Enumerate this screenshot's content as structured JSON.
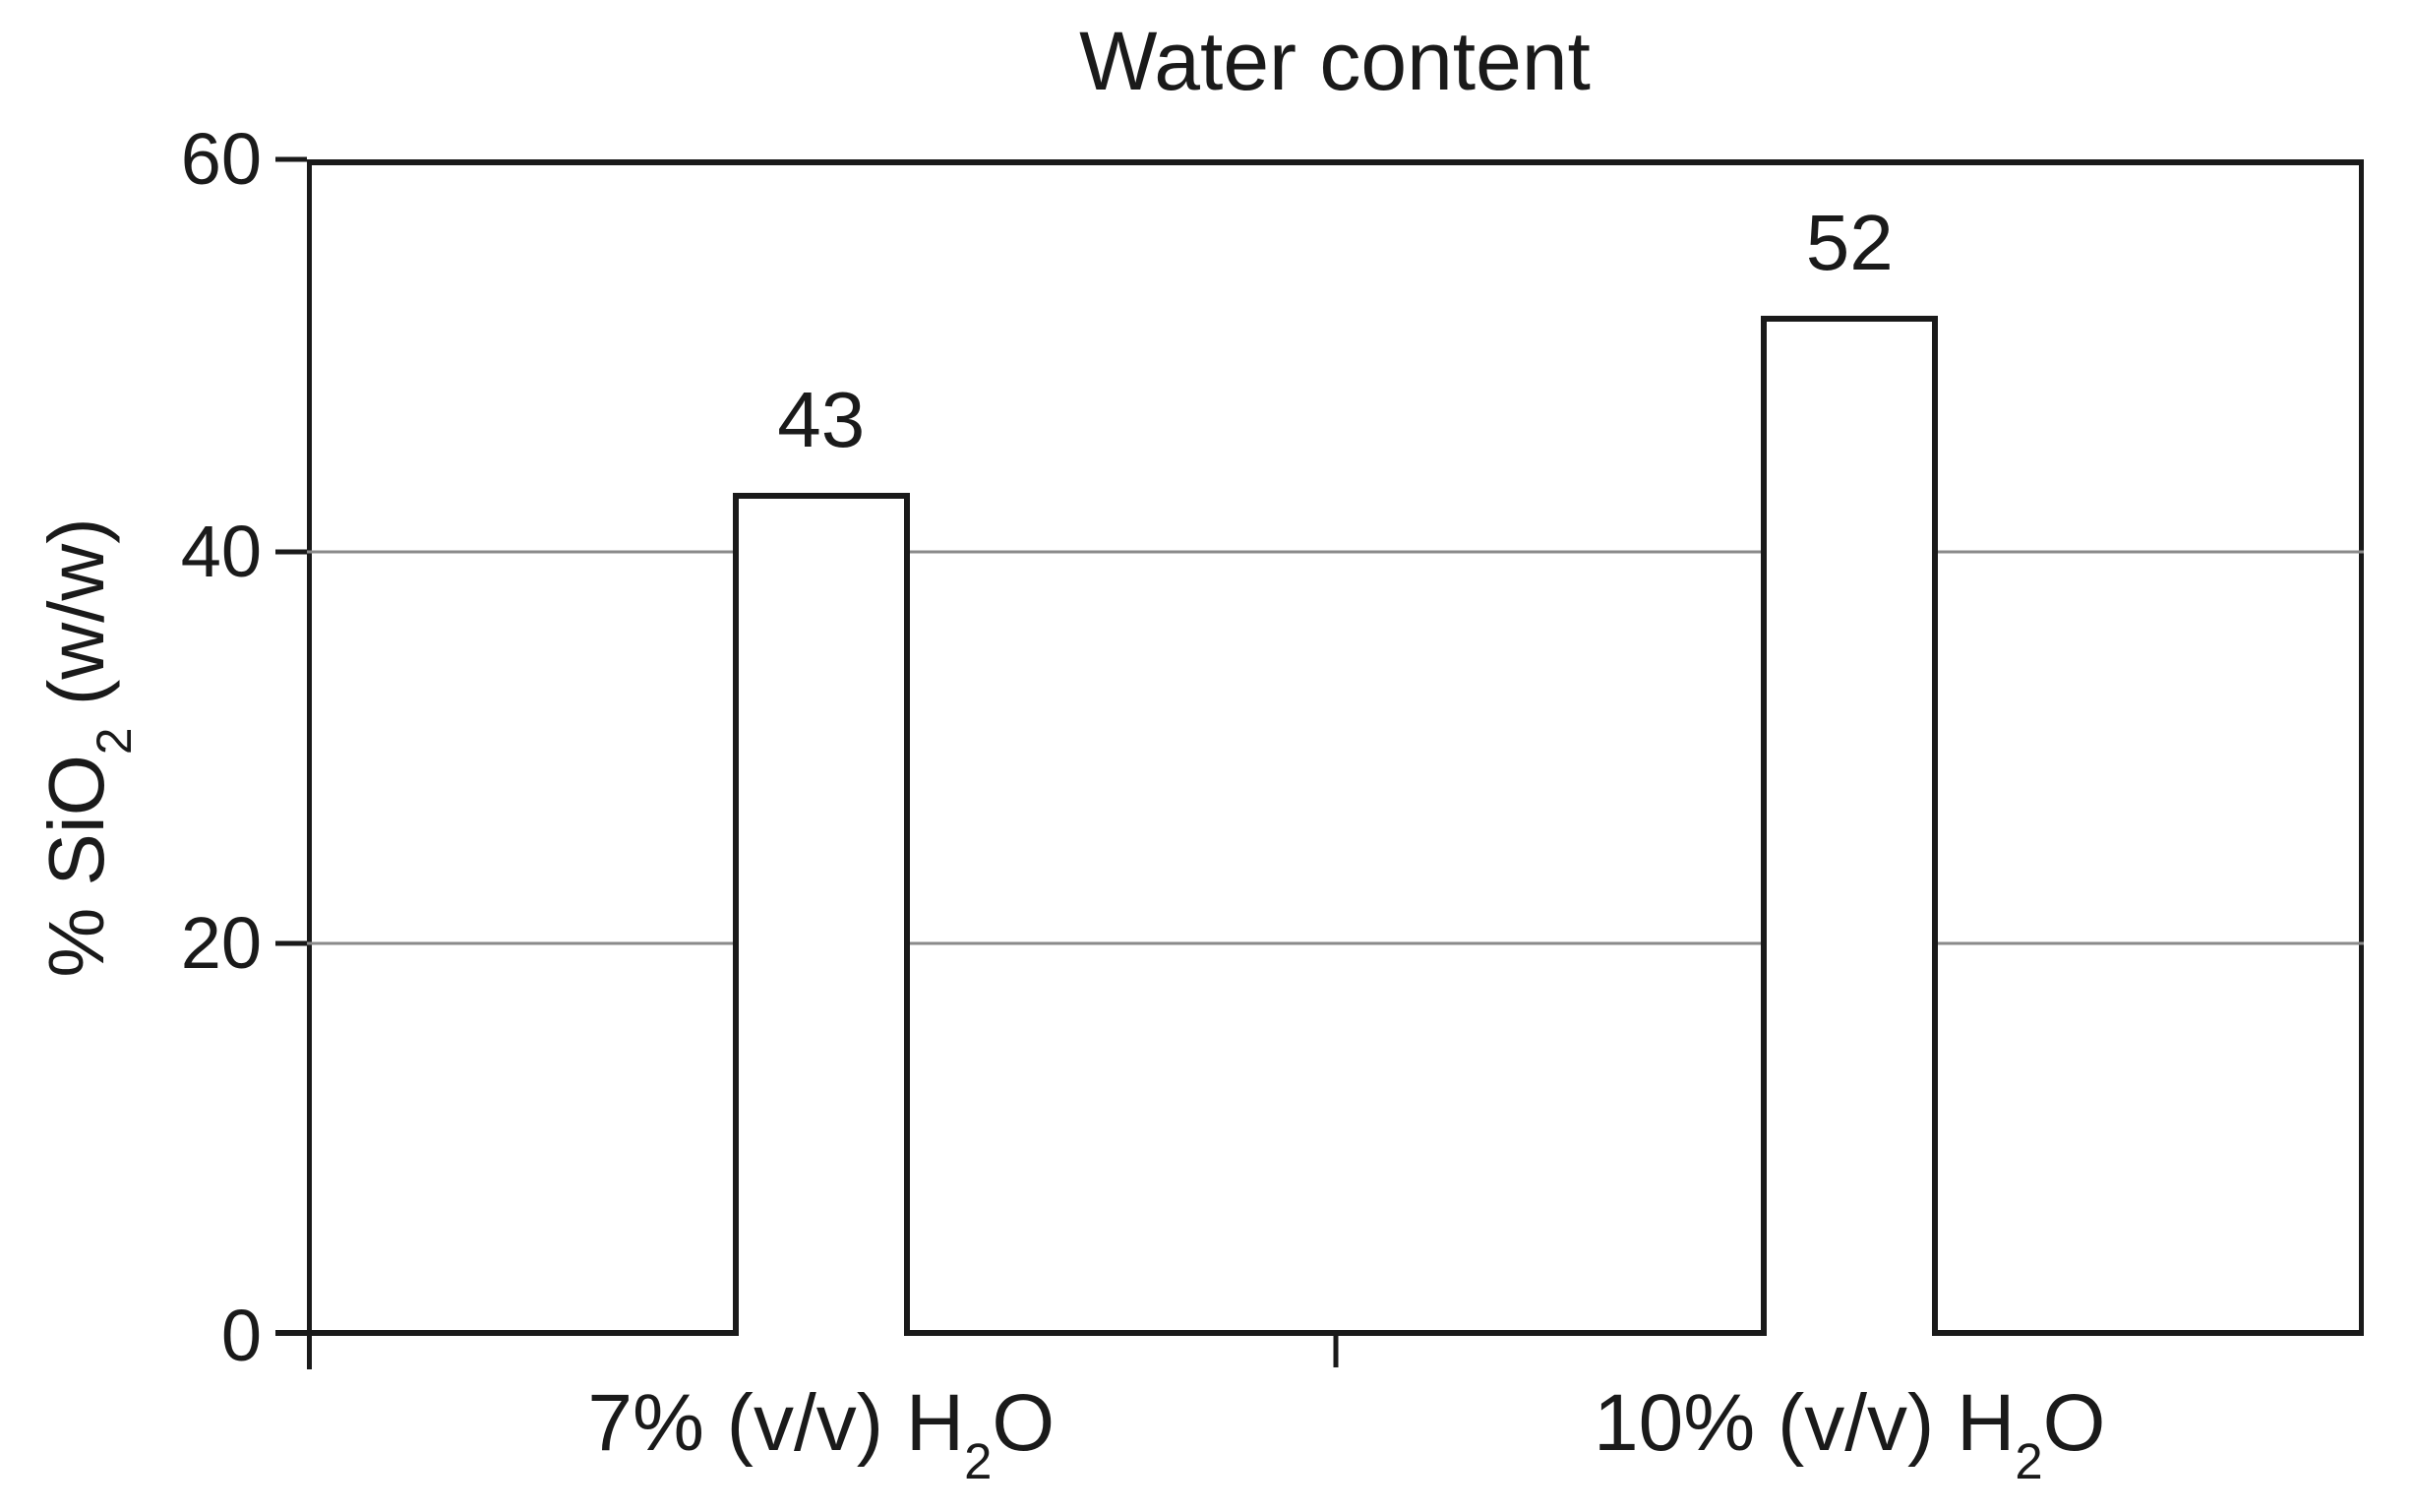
{
  "figure": {
    "background": "#ffffff",
    "text_color": "#1a1a1a"
  },
  "chart_data": {
    "type": "bar",
    "title": "Water content",
    "categories": [
      "7% (v/v) H2O",
      "10% (v/v) H2O"
    ],
    "values": [
      43,
      52
    ],
    "bar_value_labels": [
      "43",
      "52"
    ],
    "xlabel": "",
    "ylabel": "% SiO2 (w/w)",
    "ylim": [
      0,
      60
    ],
    "yticks": [
      0,
      20,
      40,
      60
    ],
    "gridlines": [
      20,
      40
    ],
    "grid": "horizontal",
    "legend": "none",
    "bar_fill": "#ffffff",
    "bar_border_color": "#1a1a1a",
    "axis_color": "#1a1a1a",
    "gridline_color": "#8a8a8a"
  },
  "render": {
    "y_axis_label": {
      "pre": "% SiO",
      "sub": "2",
      "post": " (w/w)"
    },
    "categories": [
      {
        "pre": "7% (v/v) H",
        "sub": "2",
        "post": "O"
      },
      {
        "pre": "10% (v/v) H",
        "sub": "2",
        "post": "O"
      }
    ]
  }
}
